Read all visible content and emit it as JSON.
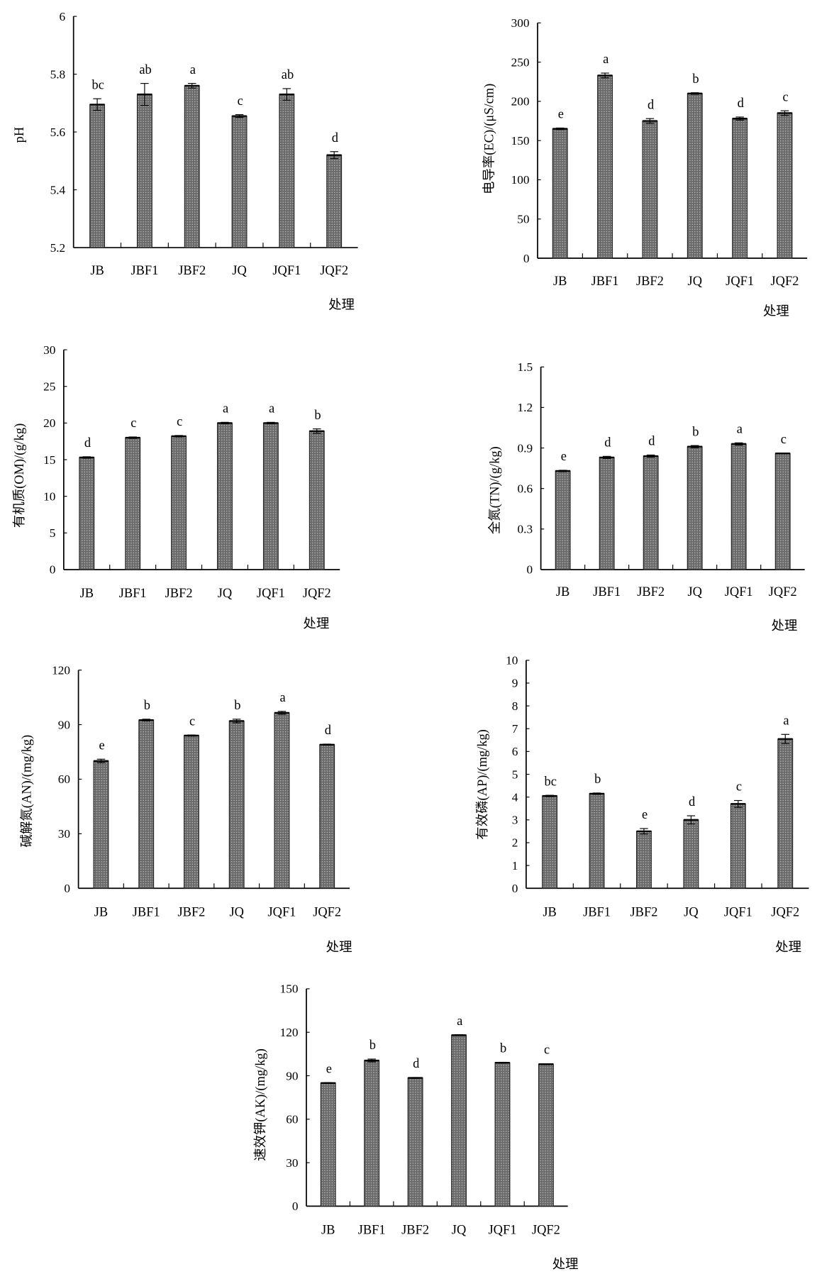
{
  "chart_data": [
    {
      "type": "bar",
      "ylabel": "pH",
      "xlabel": "处理",
      "categories": [
        "JB",
        "JBF1",
        "JBF2",
        "JQ",
        "JQF1",
        "JQF2"
      ],
      "values": [
        5.695,
        5.73,
        5.76,
        5.655,
        5.73,
        5.52
      ],
      "errors": [
        0.02,
        0.038,
        0.008,
        0.005,
        0.02,
        0.012
      ],
      "letters": [
        "bc",
        "ab",
        "a",
        "c",
        "ab",
        "d"
      ],
      "ylim": [
        5.2,
        6.0
      ],
      "yticks": [
        "5.2",
        "5.4",
        "5.6",
        "5.8",
        "6"
      ]
    },
    {
      "type": "bar",
      "ylabel": "电导率(EC)/(μS/cm)",
      "xlabel": "处理",
      "categories": [
        "JB",
        "JBF1",
        "JBF2",
        "JQ",
        "JQF1",
        "JQF2"
      ],
      "values": [
        165,
        233,
        175,
        210,
        178,
        185
      ],
      "errors": [
        1,
        3,
        3,
        1,
        2,
        3
      ],
      "letters": [
        "e",
        "a",
        "d",
        "b",
        "d",
        "c"
      ],
      "ylim": [
        0,
        300
      ],
      "yticks": [
        "0",
        "50",
        "100",
        "150",
        "200",
        "250",
        "300"
      ]
    },
    {
      "type": "bar",
      "ylabel": "有机质(OM)/(g/kg)",
      "xlabel": "处理",
      "categories": [
        "JB",
        "JBF1",
        "JBF2",
        "JQ",
        "JQF1",
        "JQF2"
      ],
      "values": [
        15.3,
        18.0,
        18.2,
        20.0,
        20.0,
        18.9
      ],
      "errors": [
        0.1,
        0.1,
        0.1,
        0.1,
        0.1,
        0.3
      ],
      "letters": [
        "d",
        "c",
        "c",
        "a",
        "a",
        "b"
      ],
      "ylim": [
        0,
        30
      ],
      "yticks": [
        "0",
        "5",
        "10",
        "15",
        "20",
        "25",
        "30"
      ]
    },
    {
      "type": "bar",
      "ylabel": "全氮(TN)/(g/kg)",
      "xlabel": "处理",
      "categories": [
        "JB",
        "JBF1",
        "JBF2",
        "JQ",
        "JQF1",
        "JQF2"
      ],
      "values": [
        0.73,
        0.83,
        0.84,
        0.91,
        0.93,
        0.86
      ],
      "errors": [
        0.005,
        0.008,
        0.008,
        0.008,
        0.008,
        0.003
      ],
      "letters": [
        "e",
        "d",
        "d",
        "b",
        "a",
        "c"
      ],
      "ylim": [
        0,
        1.5
      ],
      "yticks": [
        "0",
        "0.3",
        "0.6",
        "0.9",
        "1.2",
        "1.5"
      ]
    },
    {
      "type": "bar",
      "ylabel": "碱解氮(AN)/(mg/kg)",
      "xlabel": "处理",
      "categories": [
        "JB",
        "JBF1",
        "JBF2",
        "JQ",
        "JQF1",
        "JQF2"
      ],
      "values": [
        70,
        92.5,
        84,
        92,
        96.5,
        79
      ],
      "errors": [
        1,
        0.5,
        0.3,
        1,
        0.8,
        0.3
      ],
      "letters": [
        "e",
        "b",
        "c",
        "b",
        "a",
        "d"
      ],
      "ylim": [
        0,
        120
      ],
      "yticks": [
        "0",
        "30",
        "60",
        "90",
        "120"
      ]
    },
    {
      "type": "bar",
      "ylabel": "有效磷(AP)/(mg/kg)",
      "xlabel": "处理",
      "categories": [
        "JB",
        "JBF1",
        "JBF2",
        "JQ",
        "JQF1",
        "JQF2"
      ],
      "values": [
        4.05,
        4.15,
        2.5,
        3.0,
        3.7,
        6.55
      ],
      "errors": [
        0.03,
        0.03,
        0.12,
        0.18,
        0.15,
        0.2
      ],
      "letters": [
        "bc",
        "b",
        "e",
        "d",
        "c",
        "a"
      ],
      "ylim": [
        0,
        10
      ],
      "yticks": [
        "0",
        "1",
        "2",
        "3",
        "4",
        "5",
        "6",
        "7",
        "8",
        "9",
        "10"
      ]
    },
    {
      "type": "bar",
      "ylabel": "速效钾(AK)/(mg/kg)",
      "xlabel": "处理",
      "categories": [
        "JB",
        "JBF1",
        "JBF2",
        "JQ",
        "JQF1",
        "JQF2"
      ],
      "values": [
        85,
        100.5,
        88.5,
        118,
        99,
        98
      ],
      "errors": [
        0.3,
        1,
        0.3,
        0.3,
        0.3,
        0.3
      ],
      "letters": [
        "e",
        "b",
        "d",
        "a",
        "b",
        "c"
      ],
      "ylim": [
        0,
        150
      ],
      "yticks": [
        "0",
        "30",
        "60",
        "90",
        "120",
        "150"
      ]
    }
  ]
}
